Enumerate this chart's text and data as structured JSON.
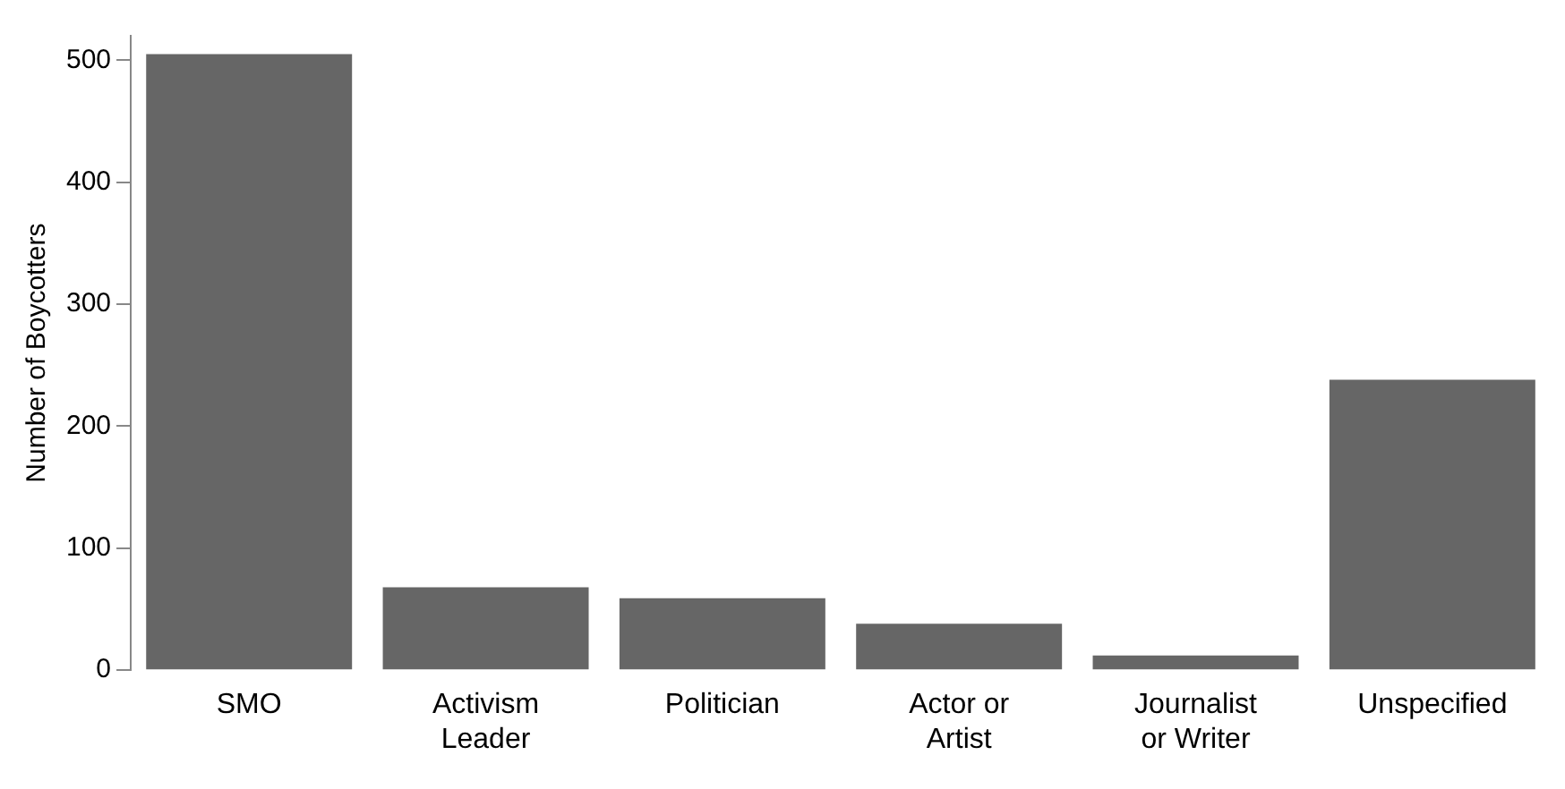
{
  "chart_data": {
    "type": "bar",
    "ylabel": "Number of Boycotters",
    "categories": [
      "SMO",
      "Activism\nLeader",
      "Politician",
      "Actor or\nArtist",
      "Journalist\nor Writer",
      "Unspecified"
    ],
    "values": [
      505,
      68,
      59,
      38,
      12,
      238
    ],
    "color": "#666666",
    "ylim": [
      0,
      520
    ],
    "yticks": [
      0,
      100,
      200,
      300,
      400,
      500
    ],
    "grid": false
  }
}
